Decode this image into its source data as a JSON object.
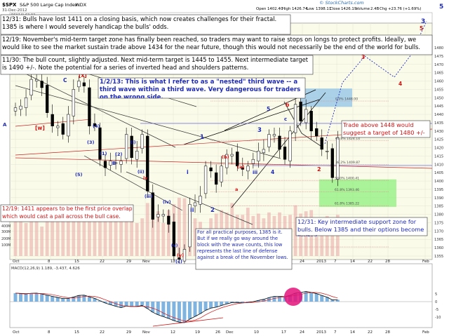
{
  "header": {
    "symbol": "$SPX",
    "name": "S&P 500 Large Cap Index",
    "exchange": "INDX",
    "date": "31-Dec-2012",
    "open": "1402.40",
    "high": "1426.74",
    "low": "1398.11",
    "close": "1426.19",
    "volume": "2.4B",
    "change": "+23.76 (+1.69%)",
    "brand": "© StockCharts.com"
  },
  "indicators": {
    "rsi_label": "RSI(14) 63.02",
    "macd_label": "MACD(12,26,9) 1.189, -3.437, 4.626"
  },
  "x_axis": {
    "labels": [
      "Oct",
      "8",
      "15",
      "22",
      "29",
      "Nov",
      "12",
      "19",
      "26",
      "Dec",
      "10",
      "17",
      "24",
      "2013",
      "7",
      "14",
      "22",
      "28",
      "Feb"
    ]
  },
  "price_axis": {
    "labels": [
      "1480",
      "1475",
      "1470",
      "1465",
      "1460",
      "1455",
      "1450",
      "1445",
      "1440",
      "1435",
      "1430",
      "1425",
      "1420",
      "1415",
      "1410",
      "1405",
      "1400",
      "1395",
      "1390",
      "1385",
      "1380",
      "1375",
      "1370",
      "1365",
      "1360",
      "1355"
    ]
  },
  "volume_axis": {
    "labels": [
      "600M",
      "400M",
      "300M",
      "200M",
      "100M"
    ]
  },
  "macd_axis": {
    "labels": [
      "5",
      "0",
      "-5",
      "-10"
    ]
  },
  "fib_labels": [
    "0.0% 1448.00",
    "61.8% 1424.14",
    "38.2% 1409.87",
    "50.0% 1400.41",
    "61.8% 1393.46",
    "61.8% 1385.22",
    "100.0% 1343.35"
  ],
  "wave_labels": {
    "x": "[x]",
    "w": "[w]",
    "c_top": "C",
    "b_upper": "b",
    "a_label": "a",
    "i": "i",
    "ii": "ii",
    "iii": "iii",
    "one": "1",
    "two": "2",
    "three": "3",
    "four": "4",
    "five": "5",
    "y": "(y)",
    "b_paren": "(b)",
    "c_paren": "(c)",
    "a_paren": "(a)",
    "iv": "iv",
    "B": "B",
    "A": "A",
    "five_paren": "(5)",
    "four_paren": "(4)",
    "three_paren": "(3)",
    "one_paren": "(1)",
    "two_paren": "(2)",
    "c_lower": "c",
    "ii_lower": "(ii)",
    "i_lower": "(i)",
    "iii_lower": "(iii)",
    "iv_lower": "(iv)",
    "v_lower": "(v)",
    "red_5": "5",
    "red_4": "4",
    "red_3": "3",
    "red_2": "2",
    "red_b": "b"
  },
  "annotations": {
    "note_1231_top": "12/31: Bulls have lost 1411 on a closing basis, which now creates challenges for their fractal. 1385 is where I would severely handicap the bulls' odds.",
    "note_1219": "12/19: November's mid-term target zone has finally been reached, so traders may want to raise stops on longs to protect profits. Ideally, we would like to see the market sustain trade above 1434 for the near future, though this would not necessarily be the end of the world for bulls.",
    "note_1130": "11/30: The bull count, slightly adjusted. Next mid-term target is 1445 to 1455. Next intermediate target is 1490 +/-. Note the potential for a series of inverted head and shoulders patterns.",
    "note_0102": "1/2/13: This is what I refer to as a \"nested\" third wave -- a third wave within a third wave. Very dangerous for traders on the wrong side.",
    "note_1448": "Trade above 1448 would suggest a target of 1480 +/-",
    "note_1411": "12/19: 1411 appears to be the first price overlap which would cast a pall across the bull case.",
    "note_1385": "For all practical purposes, 1385 is it. But if we really go way around the block with the wave counts, this low represents the last line of defense against a break of the November lows.",
    "note_1231_bottom": "12/31: Key intermediate support zone for bulls. Below 1385 and their options become limited."
  },
  "chart_data": {
    "type": "candlestick",
    "title": "$SPX S&P 500 Large Cap Index INDX",
    "ylim": [
      1343,
      1482
    ],
    "dates": [
      "Oct 1",
      "Oct 2",
      "Oct 3",
      "Oct 4",
      "Oct 5",
      "Oct 8",
      "Oct 9",
      "Oct 10",
      "Oct 11",
      "Oct 12",
      "Oct 15",
      "Oct 16",
      "Oct 17",
      "Oct 18",
      "Oct 19",
      "Oct 22",
      "Oct 23",
      "Oct 24",
      "Oct 25",
      "Oct 26",
      "Oct 31",
      "Nov 1",
      "Nov 2",
      "Nov 5",
      "Nov 6",
      "Nov 7",
      "Nov 8",
      "Nov 9",
      "Nov 12",
      "Nov 13",
      "Nov 14",
      "Nov 15",
      "Nov 16",
      "Nov 19",
      "Nov 20",
      "Nov 21",
      "Nov 23",
      "Nov 26",
      "Nov 27",
      "Nov 28",
      "Nov 29",
      "Nov 30",
      "Dec 3",
      "Dec 4",
      "Dec 5",
      "Dec 6",
      "Dec 7",
      "Dec 10",
      "Dec 11",
      "Dec 12",
      "Dec 13",
      "Dec 14",
      "Dec 17",
      "Dec 18",
      "Dec 19",
      "Dec 20",
      "Dec 21",
      "Dec 24",
      "Dec 26",
      "Dec 27",
      "Dec 28",
      "Dec 31"
    ],
    "series": [
      {
        "name": "SPX",
        "close": [
          1444,
          1445,
          1450,
          1461,
          1461,
          1456,
          1441,
          1433,
          1433,
          1428,
          1440,
          1455,
          1460,
          1457,
          1433,
          1433,
          1413,
          1408,
          1412,
          1411,
          1412,
          1428,
          1414,
          1418,
          1428,
          1394,
          1377,
          1380,
          1380,
          1374,
          1355,
          1353,
          1359,
          1386,
          1387,
          1391,
          1409,
          1406,
          1398,
          1409,
          1416,
          1416,
          1409,
          1407,
          1409,
          1413,
          1418,
          1419,
          1428,
          1428,
          1419,
          1413,
          1430,
          1446,
          1436,
          1443,
          1430,
          1427,
          1419,
          1418,
          1402,
          1426
        ]
      }
    ],
    "volume": [
      600,
      620,
      560,
      640,
      600,
      500,
      650,
      640,
      580,
      620,
      660,
      700,
      640,
      620,
      780,
      640,
      720,
      650,
      620,
      600,
      720,
      660,
      700,
      560,
      640,
      900,
      840,
      760,
      560,
      780,
      880,
      990,
      980,
      800,
      640,
      580,
      360,
      640,
      720,
      780,
      740,
      900,
      700,
      700,
      820,
      680,
      720,
      640,
      740,
      680,
      740,
      680,
      700,
      860,
      720,
      760,
      780,
      330,
      600,
      680,
      620,
      700
    ],
    "macd": [
      5.5,
      5.2,
      5.0,
      5.4,
      5.5,
      5.0,
      4.2,
      3.4,
      2.7,
      2.0,
      2.1,
      3.0,
      4.0,
      4.2,
      3.1,
      2.1,
      0.6,
      -0.9,
      -2.0,
      -3.0,
      -3.9,
      -2.8,
      -3.2,
      -3.1,
      -2.5,
      -4.5,
      -6.9,
      -8.5,
      -9.7,
      -10.9,
      -12.3,
      -13.3,
      -13.6,
      -11.3,
      -9.6,
      -7.8,
      -5.6,
      -4.2,
      -3.6,
      -2.5,
      -1.5,
      -0.6,
      -0.6,
      -0.8,
      -0.6,
      0.0,
      0.8,
      1.5,
      2.6,
      3.4,
      3.4,
      3.2,
      4.1,
      5.5,
      5.9,
      6.6,
      6.0,
      5.2,
      4.0,
      2.9,
      1.1,
      1.2
    ]
  }
}
